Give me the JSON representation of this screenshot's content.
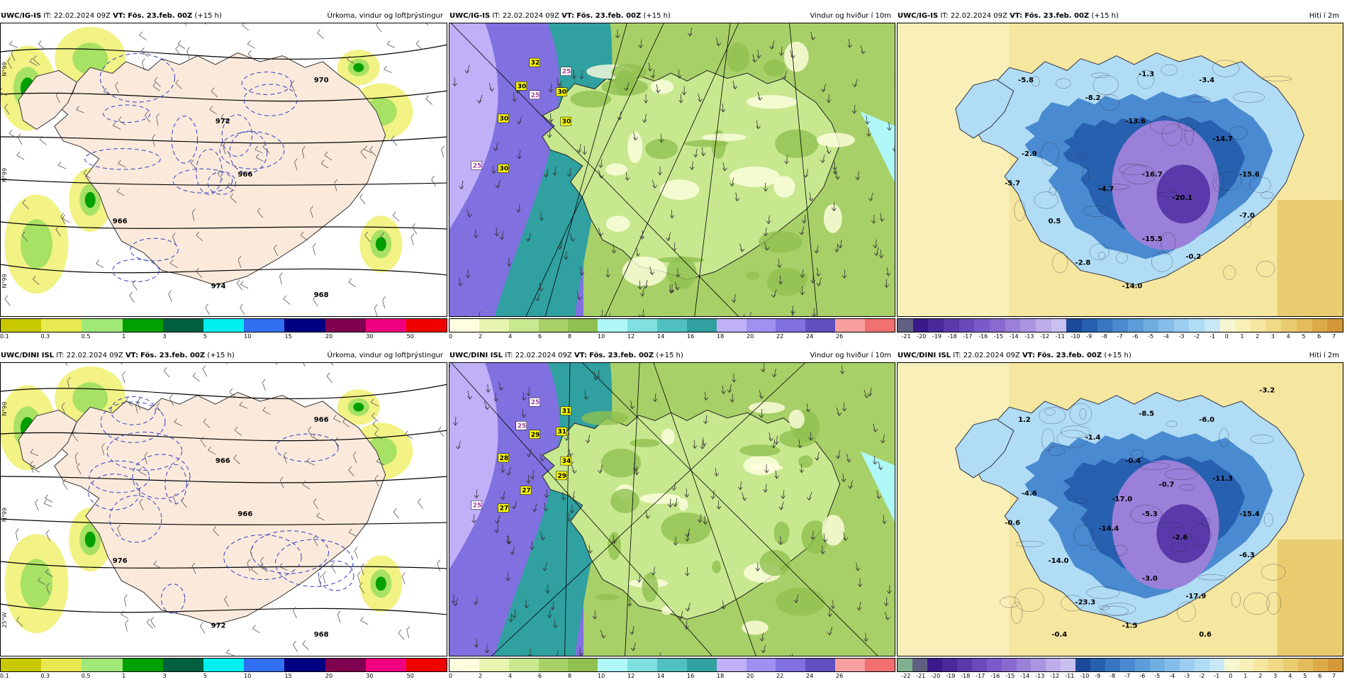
{
  "panels": [
    {
      "row": "top",
      "col": 0,
      "kind": "precip",
      "model": "UWC/IG-IS",
      "it_label": "IT:",
      "it": "22.02.2024 09Z",
      "vt_label": "VT:",
      "vt": "Fös. 23.feb. 00Z",
      "lead": "(+15 h)",
      "title": "Úrkoma, vindur og loftþrýstingur",
      "ticks": [
        "0.1",
        "0.3",
        "0.5",
        "1",
        "3",
        "5",
        "10",
        "15",
        "20",
        "30",
        "50"
      ],
      "scale_colors": [
        "#c8c800",
        "#e8e850",
        "#a0e878",
        "#00a000",
        "#006040",
        "#00f0f0",
        "#3070f0",
        "#000080",
        "#800050",
        "#f00080",
        "#f00000"
      ],
      "pressure_labels": [
        "970",
        "966",
        "966",
        "974",
        "968",
        "972"
      ],
      "lat_labels": [
        "N°99",
        "N°99",
        "N°99"
      ]
    },
    {
      "row": "top",
      "col": 1,
      "kind": "wind",
      "model": "UWC/IG-IS",
      "it_label": "IT:",
      "it": "22.02.2024 09Z",
      "vt_label": "VT:",
      "vt": "Fös. 23.feb. 00Z",
      "lead": "(+15 h)",
      "title": "Vindur og hviður í 10m",
      "ticks": [
        "0",
        "2",
        "4",
        "6",
        "8",
        "10",
        "12",
        "14",
        "16",
        "18",
        "20",
        "22",
        "24",
        "26"
      ],
      "scale_colors": [
        "#ffffe0",
        "#e8f5b0",
        "#c8e890",
        "#a8d068",
        "#90c050",
        "#b0f8f8",
        "#80e0e0",
        "#50c0c0",
        "#30a0a0",
        "#c0b0f8",
        "#a090f0",
        "#8070e0",
        "#6050c0",
        "#f8a0a0",
        "#f07070"
      ],
      "gust_labels": [
        "32",
        "25",
        "30",
        "25",
        "30",
        "30",
        "30",
        "25",
        "30"
      ]
    },
    {
      "row": "top",
      "col": 2,
      "kind": "temp",
      "model": "UWC/IG-IS",
      "it_label": "IT:",
      "it": "22.02.2024 09Z",
      "vt_label": "VT:",
      "vt": "Fös. 23.feb. 00Z",
      "lead": "(+15 h)",
      "title": "Hiti í 2m",
      "ticks": [
        "-21",
        "-20",
        "-19",
        "-18",
        "-17",
        "-16",
        "-15",
        "-14",
        "-13",
        "-12",
        "-11",
        "-10",
        "-9",
        "-8",
        "-7",
        "-6",
        "-5",
        "-4",
        "-3",
        "-2",
        "-1",
        "0",
        "1",
        "2",
        "3",
        "4",
        "5",
        "6",
        "7"
      ],
      "scale_colors": [
        "#606080",
        "#3a1a8a",
        "#4a2a9a",
        "#5a3aaa",
        "#6a4aba",
        "#7a5aca",
        "#8a6ad0",
        "#9a80d8",
        "#aa95e0",
        "#bcacea",
        "#c8c0f0",
        "#1c4a98",
        "#2860b0",
        "#3876c0",
        "#4a8ad0",
        "#5c9cd8",
        "#70aee0",
        "#84bee8",
        "#9acdf0",
        "#b0dcf5",
        "#c8e8f8",
        "#f6f6d0",
        "#f8f0b8",
        "#f5e6a0",
        "#f0da88",
        "#eacc70",
        "#e4bc5c",
        "#dcaa48",
        "#d49838"
      ],
      "temp_labels": [
        "-5.8",
        "-1.3",
        "-3.4",
        "-8.2",
        "-13.6",
        "-14.7",
        "-2.9",
        "-16.7",
        "-5.7",
        "-4.7",
        "-15.6",
        "-20.1",
        "0.5",
        "-7.0",
        "-15.5",
        "-0.2",
        "-2.8",
        "-14.0"
      ]
    },
    {
      "row": "bottom",
      "col": 0,
      "kind": "precip",
      "model": "UWC/DINI ISL",
      "it_label": "IT:",
      "it": "22.02.2024 09Z",
      "vt_label": "VT:",
      "vt": "Fös. 23.feb. 00Z",
      "lead": "(+15 h)",
      "title": "Úrkoma, vindur og loftþrýstingur",
      "ticks": [
        "0.1",
        "0.3",
        "0.5",
        "1",
        "3",
        "5",
        "10",
        "15",
        "20",
        "30",
        "50"
      ],
      "scale_colors": [
        "#c8c800",
        "#e8e850",
        "#a0e878",
        "#00a000",
        "#006040",
        "#00f0f0",
        "#3070f0",
        "#000080",
        "#800050",
        "#f00080",
        "#f00000"
      ],
      "pressure_labels": [
        "966",
        "966",
        "976",
        "972",
        "968",
        "966"
      ],
      "lat_labels": [
        "N°99",
        "N°99",
        "25°W"
      ]
    },
    {
      "row": "bottom",
      "col": 1,
      "kind": "wind",
      "model": "UWC/DINI ISL",
      "it_label": "IT:",
      "it": "22.02.2024 09Z",
      "vt_label": "VT:",
      "vt": "Fös. 23.feb. 00Z",
      "lead": "(+15 h)",
      "title": "Vindur og hviður í 10m",
      "ticks": [
        "0",
        "2",
        "4",
        "6",
        "8",
        "10",
        "12",
        "14",
        "16",
        "18",
        "20",
        "22",
        "24",
        "26"
      ],
      "scale_colors": [
        "#ffffe0",
        "#e8f5b0",
        "#c8e890",
        "#a8d068",
        "#90c050",
        "#b0f8f8",
        "#80e0e0",
        "#50c0c0",
        "#30a0a0",
        "#c0b0f8",
        "#a090f0",
        "#8070e0",
        "#6050c0",
        "#f8a0a0",
        "#f07070"
      ],
      "gust_labels": [
        "25",
        "31",
        "25",
        "29",
        "31",
        "28",
        "34",
        "25",
        "27",
        "27",
        "29"
      ]
    },
    {
      "row": "bottom",
      "col": 2,
      "kind": "temp",
      "model": "UWC/DINI ISL",
      "it_label": "IT:",
      "it": "22.02.2024 09Z",
      "vt_label": "VT:",
      "vt": "Fös. 23.feb. 00Z",
      "lead": "(+15 h)",
      "title": "Hiti í 2m",
      "ticks": [
        "-22",
        "-21",
        "-20",
        "-19",
        "-18",
        "-17",
        "-16",
        "-15",
        "-14",
        "-13",
        "-12",
        "-11",
        "-10",
        "-9",
        "-8",
        "-7",
        "-6",
        "-5",
        "-4",
        "-3",
        "-2",
        "-1",
        "0",
        "1",
        "2",
        "3",
        "4",
        "5",
        "6",
        "7"
      ],
      "scale_colors": [
        "#80b090",
        "#606080",
        "#3a1a8a",
        "#4a2a9a",
        "#5a3aaa",
        "#6a4aba",
        "#7a5aca",
        "#8a6ad0",
        "#9a80d8",
        "#aa95e0",
        "#bcacea",
        "#c8c0f0",
        "#1c4a98",
        "#2860b0",
        "#3876c0",
        "#4a8ad0",
        "#5c9cd8",
        "#70aee0",
        "#84bee8",
        "#9acdf0",
        "#b0dcf5",
        "#c8e8f8",
        "#f6f6d0",
        "#f8f0b8",
        "#f5e6a0",
        "#f0da88",
        "#eacc70",
        "#e4bc5c",
        "#dcaa48",
        "#d49838"
      ],
      "temp_labels": [
        "1.2",
        "-8.5",
        "-6.0",
        "-1.4",
        "-0.4",
        "-11.3",
        "-4.6",
        "-5.3",
        "-0.6",
        "-14.4",
        "-15.4",
        "-2.6",
        "-14.0",
        "-6.3",
        "-3.0",
        "-17.9",
        "-23.3",
        "-1.5",
        "-3.2",
        "-0.7",
        "-17.0",
        "-0.4",
        "0.6"
      ]
    }
  ]
}
